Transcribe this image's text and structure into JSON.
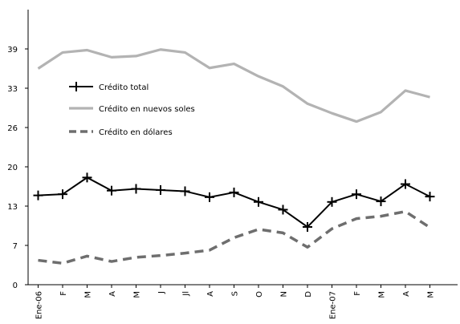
{
  "chart_data": {
    "type": "line",
    "title": "",
    "xlabel": "",
    "ylabel": "",
    "categories": [
      "Ene-06",
      "F",
      "M",
      "A",
      "M",
      "J",
      "Jl",
      "A",
      "S",
      "O",
      "N",
      "D",
      "Ene-07",
      "F",
      "M",
      "A",
      "M"
    ],
    "yticks": [
      "0",
      "7",
      "13",
      "20",
      "26",
      "33",
      "39"
    ],
    "ytick_values": [
      0,
      6.6,
      13.2,
      19.8,
      26.4,
      33,
      39.6
    ],
    "ylim": [
      0,
      46.2
    ],
    "grid": false,
    "legend_position": "upper-left",
    "series": [
      {
        "name": "Crédito total",
        "color": "#000000",
        "style": "solid-marker-cross",
        "values": [
          15.0,
          15.2,
          18.0,
          15.8,
          16.1,
          15.9,
          15.7,
          14.7,
          15.5,
          13.9,
          12.6,
          9.7,
          13.9,
          15.2,
          14.0,
          16.9,
          14.8
        ]
      },
      {
        "name": "Crédito en nuevos soles",
        "color": "#b3b3b3",
        "style": "solid",
        "values": [
          36.3,
          39.0,
          39.4,
          38.2,
          38.4,
          39.5,
          39.0,
          36.4,
          37.1,
          35.0,
          33.3,
          30.4,
          28.8,
          27.4,
          29.0,
          32.6,
          31.5
        ]
      },
      {
        "name": "Crédito en dólares",
        "color": "#6e6e6e",
        "style": "dashed",
        "values": [
          4.1,
          3.6,
          4.8,
          3.9,
          4.6,
          4.9,
          5.3,
          5.8,
          7.9,
          9.3,
          8.7,
          6.3,
          9.4,
          11.1,
          11.5,
          12.3,
          9.6
        ]
      }
    ]
  }
}
